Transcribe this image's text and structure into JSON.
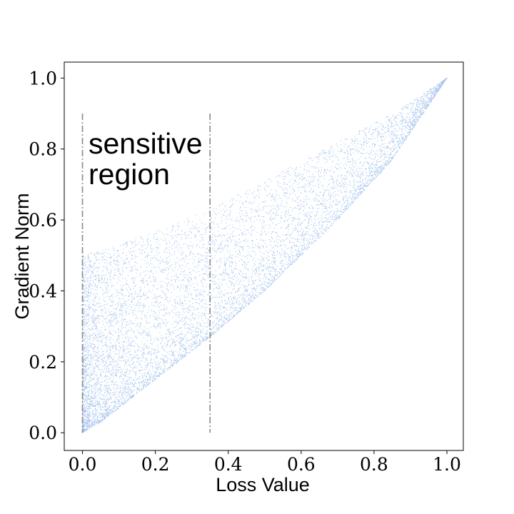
{
  "chart_data": {
    "type": "scatter",
    "title": "",
    "xlabel": "Loss Value",
    "ylabel": "Gradient Norm",
    "xlim": [
      -0.05,
      1.045
    ],
    "ylim": [
      -0.05,
      1.045
    ],
    "xticks": [
      "0.0",
      "0.2",
      "0.4",
      "0.6",
      "0.8",
      "1.0"
    ],
    "yticks": [
      "0.0",
      "0.2",
      "0.4",
      "0.6",
      "0.8",
      "1.0"
    ],
    "xtick_values": [
      0,
      0.2,
      0.4,
      0.6,
      0.8,
      1.0
    ],
    "ytick_values": [
      0,
      0.2,
      0.4,
      0.6,
      0.8,
      1.0
    ],
    "grid": false,
    "point_color": "#a6c4ec",
    "line_color": "#8a8a8a",
    "series": [
      {
        "description": "dense point cloud, roughly bounded by a lower edge ~ sqrt-like curve and upper edge from (0,0.5) to (1,1)",
        "lower_envelope": [
          [
            0,
            0
          ],
          [
            0.05,
            0.03
          ],
          [
            0.1,
            0.07
          ],
          [
            0.2,
            0.15
          ],
          [
            0.35,
            0.27
          ],
          [
            0.5,
            0.4
          ],
          [
            0.7,
            0.6
          ],
          [
            0.85,
            0.77
          ],
          [
            1.0,
            1.0
          ]
        ],
        "upper_envelope": [
          [
            0,
            0.5
          ],
          [
            0.1,
            0.53
          ],
          [
            0.2,
            0.57
          ],
          [
            0.35,
            0.63
          ],
          [
            0.5,
            0.71
          ],
          [
            0.7,
            0.82
          ],
          [
            0.85,
            0.9
          ],
          [
            1.0,
            1.0
          ]
        ]
      }
    ],
    "vertical_lines": [
      {
        "x": 0.0,
        "y_range": [
          0.0,
          0.9
        ],
        "style": "dashdot"
      },
      {
        "x": 0.35,
        "y_range": [
          0.0,
          0.9
        ],
        "style": "dashdot"
      }
    ],
    "annotations": [
      {
        "lines": [
          "sensitive",
          "region"
        ],
        "x": 0.015,
        "y": 0.81
      }
    ]
  }
}
